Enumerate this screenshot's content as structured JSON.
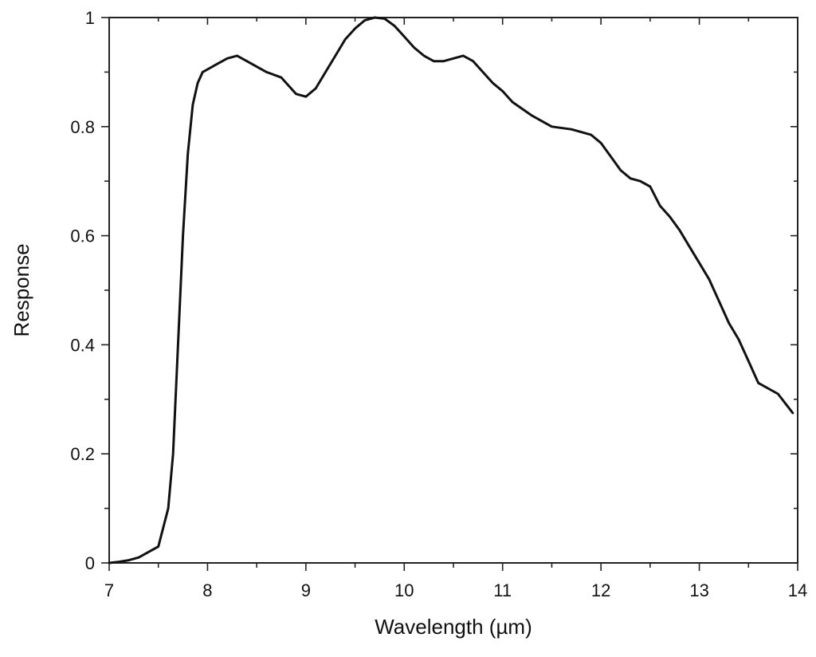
{
  "chart_data": {
    "type": "line",
    "title": "",
    "xlabel": "Wavelength (µm)",
    "ylabel": "Response",
    "xlim": [
      7,
      14
    ],
    "ylim": [
      0,
      1
    ],
    "x_ticks": [
      7,
      8,
      9,
      10,
      11,
      12,
      13,
      14
    ],
    "y_ticks": [
      0,
      0.2,
      0.4,
      0.6,
      0.8,
      1
    ],
    "x_tick_labels": [
      "7",
      "8",
      "9",
      "10",
      "11",
      "12",
      "13",
      "14"
    ],
    "y_tick_labels": [
      "0",
      "0.2",
      "0.4",
      "0.6",
      "0.8",
      "1"
    ],
    "grid": false,
    "series": [
      {
        "color": "#111111",
        "x": [
          7.0,
          7.1,
          7.2,
          7.3,
          7.4,
          7.5,
          7.6,
          7.65,
          7.7,
          7.75,
          7.8,
          7.85,
          7.9,
          7.95,
          8.0,
          8.1,
          8.2,
          8.3,
          8.4,
          8.5,
          8.6,
          8.75,
          8.9,
          9.0,
          9.1,
          9.2,
          9.3,
          9.4,
          9.5,
          9.6,
          9.7,
          9.8,
          9.9,
          10.0,
          10.1,
          10.2,
          10.3,
          10.4,
          10.5,
          10.6,
          10.7,
          10.8,
          10.9,
          11.0,
          11.1,
          11.3,
          11.5,
          11.7,
          11.9,
          12.0,
          12.1,
          12.2,
          12.3,
          12.4,
          12.5,
          12.6,
          12.7,
          12.8,
          12.9,
          13.0,
          13.1,
          13.2,
          13.3,
          13.4,
          13.5,
          13.6,
          13.8,
          13.95
        ],
        "y": [
          0.0,
          0.002,
          0.005,
          0.01,
          0.02,
          0.03,
          0.1,
          0.2,
          0.4,
          0.6,
          0.75,
          0.84,
          0.88,
          0.9,
          0.905,
          0.915,
          0.925,
          0.93,
          0.92,
          0.91,
          0.9,
          0.89,
          0.86,
          0.855,
          0.87,
          0.9,
          0.93,
          0.96,
          0.98,
          0.995,
          1.0,
          0.998,
          0.985,
          0.965,
          0.945,
          0.93,
          0.92,
          0.92,
          0.925,
          0.93,
          0.92,
          0.9,
          0.88,
          0.865,
          0.845,
          0.82,
          0.8,
          0.795,
          0.785,
          0.77,
          0.745,
          0.72,
          0.705,
          0.7,
          0.69,
          0.655,
          0.635,
          0.61,
          0.58,
          0.55,
          0.52,
          0.48,
          0.44,
          0.41,
          0.37,
          0.33,
          0.31,
          0.275
        ]
      }
    ]
  }
}
